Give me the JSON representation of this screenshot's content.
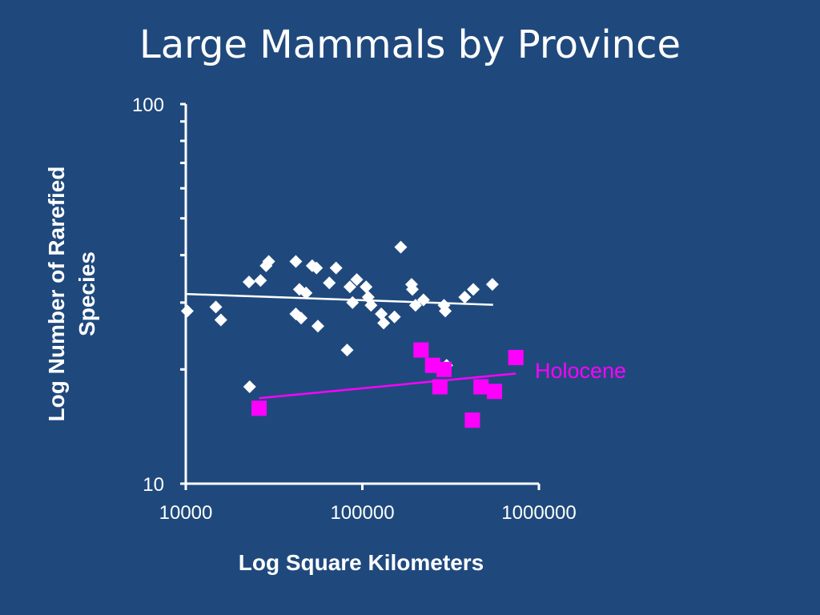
{
  "slide": {
    "title": "Large Mammals by Province"
  },
  "colors": {
    "background": "#1f497d",
    "axis": "#ffffff",
    "series_white": "#ffffff",
    "series_holocene": "#ff00ff"
  },
  "chart_data": {
    "type": "scatter",
    "title": "Large Mammals by Province",
    "xlabel": "Log Square Kilometers",
    "ylabel": "Log Number of Rarefied Species",
    "xscale": "log",
    "yscale": "log",
    "xlim": [
      10000,
      1000000
    ],
    "ylim": [
      10,
      100
    ],
    "xticks": [
      "10000",
      "100000",
      "1000000"
    ],
    "yticks": [
      "10",
      "100"
    ],
    "grid": false,
    "series": [
      {
        "marker": "diamond",
        "color": "#ffffff",
        "points": [
          [
            10200,
            28.5
          ],
          [
            14800,
            29.2
          ],
          [
            15800,
            27
          ],
          [
            22800,
            34
          ],
          [
            23000,
            18
          ],
          [
            26500,
            34.3
          ],
          [
            28500,
            37.5
          ],
          [
            29500,
            38.5
          ],
          [
            42000,
            38.5
          ],
          [
            42000,
            28
          ],
          [
            44000,
            32.5
          ],
          [
            45000,
            27.3
          ],
          [
            48000,
            31.8
          ],
          [
            52000,
            37.5
          ],
          [
            55000,
            37
          ],
          [
            56000,
            26
          ],
          [
            65000,
            33.8
          ],
          [
            71000,
            37
          ],
          [
            82000,
            22.5
          ],
          [
            85000,
            33
          ],
          [
            88000,
            30
          ],
          [
            93000,
            34.5
          ],
          [
            105000,
            33
          ],
          [
            108000,
            31
          ],
          [
            112000,
            29.5
          ],
          [
            128000,
            28
          ],
          [
            132000,
            26.5
          ],
          [
            152000,
            27.5
          ],
          [
            165000,
            42
          ],
          [
            190000,
            33.5
          ],
          [
            192000,
            32.5
          ],
          [
            200000,
            29.5
          ],
          [
            222000,
            30.5
          ],
          [
            290000,
            29.5
          ],
          [
            295000,
            28.5
          ],
          [
            300000,
            20.5
          ],
          [
            380000,
            31
          ],
          [
            425000,
            32.5
          ],
          [
            545000,
            33.5
          ]
        ],
        "trend": [
          [
            10000,
            31.6
          ],
          [
            550000,
            29.6
          ]
        ]
      },
      {
        "name": "Holocene",
        "marker": "square",
        "color": "#ff00ff",
        "points": [
          [
            26000,
            15.8
          ],
          [
            215000,
            22.5
          ],
          [
            250000,
            20.5
          ],
          [
            275000,
            18
          ],
          [
            290000,
            20
          ],
          [
            420000,
            14.7
          ],
          [
            470000,
            18
          ],
          [
            560000,
            17.5
          ],
          [
            740000,
            21.5
          ]
        ],
        "trend": [
          [
            26000,
            16.8
          ],
          [
            740000,
            19.5
          ]
        ]
      }
    ]
  }
}
